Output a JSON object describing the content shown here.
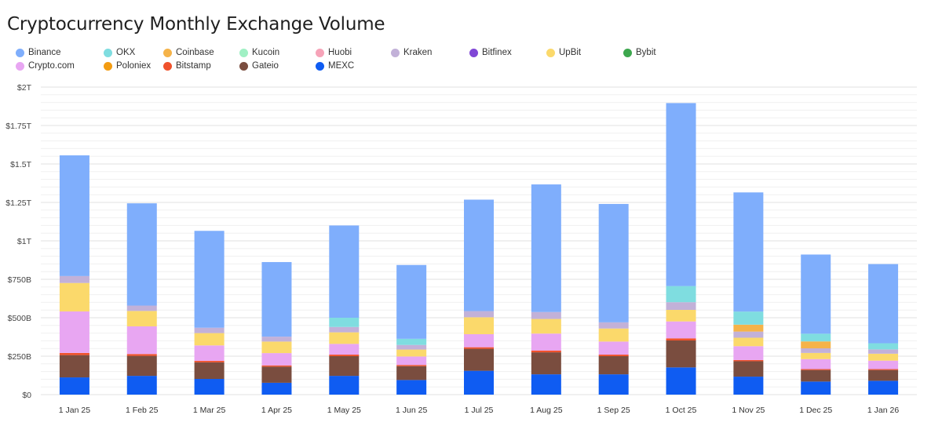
{
  "chart_data": {
    "type": "bar",
    "stacked": true,
    "title": "Cryptocurrency Monthly Exchange Volume",
    "xlabel": "",
    "ylabel": "",
    "ylim": [
      0,
      2000
    ],
    "y_unit": "billions USD",
    "y_ticks": [
      "$0",
      "$250B",
      "$500B",
      "$750B",
      "$1T",
      "$1.25T",
      "$1.5T",
      "$1.75T",
      "$2T"
    ],
    "grid": true,
    "legend_position": "top-left",
    "categories": [
      "1 Jan 25",
      "1 Feb 25",
      "1 Mar 25",
      "1 Apr 25",
      "1 May 25",
      "1 Jun 25",
      "1 Jul 25",
      "1 Aug 25",
      "1 Sep 25",
      "1 Oct 25",
      "1 Nov 25",
      "1 Dec 25",
      "1 Jan 26"
    ],
    "series": [
      {
        "name": "MEXC",
        "color": "#0f5cf2",
        "values": [
          112,
          122,
          102,
          77,
          122,
          95,
          155,
          132,
          132,
          177,
          117,
          85,
          90
        ]
      },
      {
        "name": "Gateio",
        "color": "#7a4d3f",
        "values": [
          145,
          130,
          108,
          105,
          128,
          90,
          143,
          143,
          118,
          175,
          100,
          75,
          70
        ]
      },
      {
        "name": "Bitstamp",
        "color": "#f0522c",
        "values": [
          14,
          12,
          10,
          8,
          10,
          8,
          10,
          12,
          10,
          14,
          8,
          6,
          6
        ]
      },
      {
        "name": "Poloniex",
        "color": "#f39c12",
        "values": [
          0,
          0,
          0,
          0,
          0,
          0,
          0,
          0,
          0,
          0,
          0,
          0,
          0
        ]
      },
      {
        "name": "Crypto.com",
        "color": "#e8a6f2",
        "values": [
          270,
          180,
          100,
          80,
          70,
          55,
          85,
          110,
          85,
          110,
          90,
          65,
          55
        ]
      },
      {
        "name": "Bybit",
        "color": "#3da74e",
        "values": [
          0,
          0,
          0,
          0,
          0,
          0,
          0,
          0,
          0,
          0,
          0,
          0,
          0
        ]
      },
      {
        "name": "UpBit",
        "color": "#fbd96b",
        "values": [
          185,
          100,
          80,
          75,
          75,
          45,
          110,
          95,
          85,
          75,
          55,
          40,
          45
        ]
      },
      {
        "name": "Bitfinex",
        "color": "#8047d6",
        "values": [
          0,
          0,
          0,
          0,
          0,
          0,
          0,
          0,
          0,
          0,
          0,
          0,
          0
        ]
      },
      {
        "name": "Kraken",
        "color": "#c2b1d8",
        "values": [
          45,
          35,
          35,
          32,
          35,
          30,
          40,
          45,
          40,
          50,
          40,
          30,
          28
        ]
      },
      {
        "name": "Huobi",
        "color": "#f6a3b8",
        "values": [
          0,
          0,
          0,
          0,
          0,
          0,
          0,
          0,
          0,
          0,
          0,
          0,
          0
        ]
      },
      {
        "name": "Kucoin",
        "color": "#a0f0c4",
        "values": [
          0,
          0,
          0,
          0,
          0,
          0,
          0,
          0,
          0,
          0,
          0,
          0,
          0
        ]
      },
      {
        "name": "Coinbase",
        "color": "#f5b349",
        "values": [
          0,
          0,
          0,
          0,
          0,
          0,
          0,
          0,
          0,
          0,
          45,
          45,
          0
        ]
      },
      {
        "name": "OKX",
        "color": "#7fdde0",
        "values": [
          0,
          0,
          0,
          0,
          60,
          40,
          0,
          0,
          0,
          105,
          85,
          50,
          40
        ]
      },
      {
        "name": "Binance",
        "color": "#7faefc",
        "values": [
          785,
          665,
          630,
          485,
          600,
          480,
          725,
          830,
          770,
          1190,
          775,
          515,
          515
        ]
      }
    ]
  },
  "legend": {
    "rows": [
      [
        {
          "name": "Binance",
          "color": "#7faefc"
        },
        {
          "name": "OKX",
          "color": "#7fdde0"
        },
        {
          "name": "Coinbase",
          "color": "#f5b349"
        },
        {
          "name": "Kucoin",
          "color": "#a0f0c4"
        },
        {
          "name": "Huobi",
          "color": "#f6a3b8"
        },
        {
          "name": "Kraken",
          "color": "#c2b1d8"
        },
        {
          "name": "Bitfinex",
          "color": "#8047d6"
        },
        {
          "name": "UpBit",
          "color": "#fbd96b"
        },
        {
          "name": "Bybit",
          "color": "#3da74e"
        }
      ],
      [
        {
          "name": "Crypto.com",
          "color": "#e8a6f2"
        },
        {
          "name": "Poloniex",
          "color": "#f39c12"
        },
        {
          "name": "Bitstamp",
          "color": "#f0522c"
        },
        {
          "name": "Gateio",
          "color": "#7a4d3f"
        },
        {
          "name": "MEXC",
          "color": "#0f5cf2"
        }
      ]
    ]
  }
}
